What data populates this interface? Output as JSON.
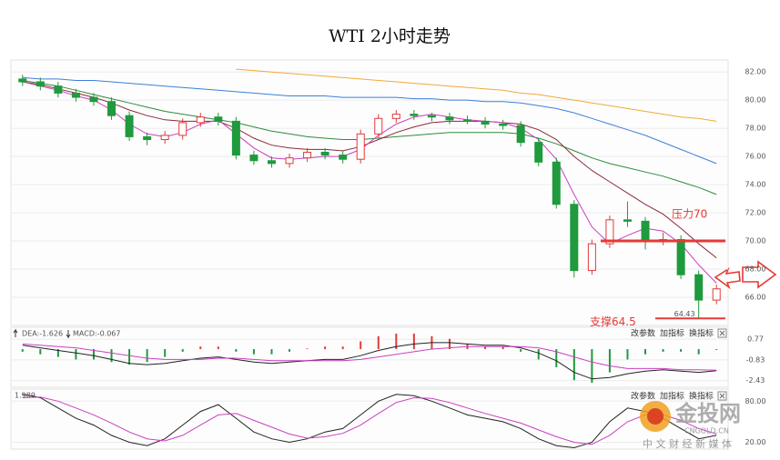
{
  "chart_data": [
    {
      "type": "candlestick",
      "title": "WTI 2小时走势",
      "open": [
        81.5,
        81.3,
        81.0,
        80.5,
        80.2,
        79.9,
        78.9,
        77.4,
        77.2,
        77.5,
        78.4,
        78.8,
        78.5,
        76.1,
        75.7,
        75.5,
        75.9,
        76.3,
        76.1,
        75.8,
        77.6,
        78.7,
        79.0,
        78.9,
        78.8,
        78.6,
        78.5,
        78.3,
        78.2,
        77.0,
        75.6,
        72.6,
        67.9,
        69.8,
        71.5,
        71.4,
        70.0,
        70.1,
        67.6,
        65.8
      ],
      "high": [
        81.8,
        81.6,
        81.3,
        80.8,
        80.5,
        80.2,
        79.2,
        77.7,
        77.8,
        78.7,
        79.1,
        79.1,
        78.8,
        76.4,
        76.0,
        76.2,
        76.6,
        76.6,
        76.4,
        77.9,
        79.0,
        79.3,
        79.3,
        79.1,
        79.1,
        78.9,
        78.8,
        78.6,
        78.5,
        77.3,
        75.9,
        72.9,
        70.1,
        71.8,
        72.8,
        71.7,
        70.6,
        70.4,
        67.9,
        66.9
      ],
      "low": [
        81.0,
        80.7,
        80.2,
        79.9,
        79.6,
        78.6,
        77.1,
        76.8,
        76.9,
        77.2,
        78.1,
        78.2,
        75.8,
        75.4,
        75.2,
        75.2,
        75.6,
        75.8,
        75.5,
        75.5,
        77.3,
        78.4,
        78.6,
        78.5,
        78.3,
        78.3,
        78.0,
        77.9,
        76.7,
        75.3,
        72.3,
        67.4,
        67.6,
        69.5,
        71.0,
        69.4,
        69.7,
        67.3,
        64.43,
        65.5
      ],
      "close": [
        81.3,
        81.0,
        80.5,
        80.2,
        79.9,
        78.9,
        77.4,
        77.2,
        77.5,
        78.4,
        78.8,
        78.5,
        76.1,
        75.7,
        75.5,
        75.9,
        76.3,
        76.1,
        75.8,
        77.6,
        78.7,
        79.0,
        78.9,
        78.8,
        78.6,
        78.5,
        78.3,
        78.2,
        77.0,
        75.6,
        72.6,
        67.9,
        69.8,
        71.5,
        71.4,
        70.0,
        70.1,
        67.6,
        65.8,
        66.6
      ],
      "up_color": "#e23a3a",
      "down_color": "#1f9a3c",
      "series": [
        {
          "color": "#f2a93b",
          "values": [
            null,
            null,
            null,
            null,
            null,
            null,
            null,
            null,
            null,
            null,
            null,
            null,
            82.2,
            82.1,
            82.0,
            81.9,
            81.8,
            81.7,
            81.6,
            81.5,
            81.4,
            81.3,
            81.2,
            81.1,
            81.0,
            80.9,
            80.8,
            80.7,
            80.5,
            80.4,
            80.2,
            80.0,
            79.8,
            79.6,
            79.4,
            79.2,
            79.0,
            78.8,
            78.7,
            78.5
          ]
        },
        {
          "color": "#3d7fd9",
          "values": [
            81.6,
            81.5,
            81.5,
            81.4,
            81.4,
            81.3,
            81.2,
            81.1,
            81.0,
            80.9,
            80.8,
            80.7,
            80.6,
            80.5,
            80.4,
            80.3,
            80.3,
            80.3,
            80.2,
            80.2,
            80.2,
            80.2,
            80.1,
            80.1,
            80.0,
            80.0,
            79.9,
            79.9,
            79.8,
            79.6,
            79.4,
            79.1,
            78.7,
            78.3,
            77.9,
            77.5,
            77.0,
            76.5,
            76.0,
            75.5
          ]
        },
        {
          "color": "#2e8b3a",
          "values": [
            81.4,
            81.2,
            81.0,
            80.7,
            80.4,
            80.1,
            79.8,
            79.5,
            79.2,
            79.0,
            78.8,
            78.6,
            78.4,
            78.1,
            77.8,
            77.6,
            77.4,
            77.3,
            77.2,
            77.2,
            77.3,
            77.4,
            77.5,
            77.6,
            77.7,
            77.7,
            77.7,
            77.7,
            77.6,
            77.3,
            76.9,
            76.4,
            75.9,
            75.5,
            75.2,
            74.9,
            74.6,
            74.2,
            73.8,
            73.3
          ]
        },
        {
          "color": "#8b2a3a",
          "values": [
            81.3,
            81.1,
            80.8,
            80.5,
            80.2,
            79.8,
            79.3,
            78.9,
            78.6,
            78.5,
            78.5,
            78.5,
            78.0,
            77.3,
            76.8,
            76.6,
            76.5,
            76.5,
            76.4,
            76.7,
            77.2,
            77.7,
            78.1,
            78.4,
            78.5,
            78.5,
            78.5,
            78.4,
            78.3,
            77.9,
            77.2,
            76.0,
            75.0,
            74.2,
            73.4,
            72.6,
            71.9,
            70.9,
            69.8,
            68.8
          ]
        },
        {
          "color": "#c940c0",
          "values": [
            81.3,
            81.0,
            80.7,
            80.3,
            80.0,
            79.3,
            78.3,
            77.6,
            77.4,
            77.7,
            78.3,
            78.6,
            77.6,
            76.6,
            75.9,
            75.8,
            75.9,
            76.0,
            76.0,
            76.5,
            77.5,
            78.3,
            78.8,
            79.0,
            78.8,
            78.6,
            78.5,
            78.4,
            78.0,
            77.2,
            75.8,
            73.3,
            71.0,
            69.8,
            70.4,
            70.9,
            70.7,
            69.8,
            68.3,
            67.0
          ]
        }
      ],
      "levels": [
        {
          "label": "压力70",
          "value": 70,
          "color": "#e53935"
        },
        {
          "label": "支撑64.5",
          "value": 64.5,
          "color": "#e53935"
        }
      ],
      "min_label": "64.43",
      "ylim": [
        64,
        82.85
      ],
      "yticks": [
        {
          "value": 66,
          "label": "66.00"
        },
        {
          "value": 68,
          "label": "68.00"
        },
        {
          "value": 70,
          "label": "70.00"
        },
        {
          "value": 72,
          "label": "72.00"
        },
        {
          "value": 74,
          "label": "74.00"
        },
        {
          "value": 76,
          "label": "76.00"
        },
        {
          "value": 78,
          "label": "78.00"
        },
        {
          "value": 80,
          "label": "80.00"
        },
        {
          "value": 82,
          "label": "82.00"
        }
      ],
      "grid": true
    },
    {
      "type": "macd",
      "dea_label": "DEA:-1.626",
      "macd_label": "MACD:-0.067",
      "buttons": [
        "改参数",
        "加指标",
        "换指标"
      ],
      "ylim": [
        -2.95,
        1.55
      ],
      "yticks": [
        0.77,
        -0.83,
        -2.43
      ],
      "series": [
        {
          "color": "#222222",
          "values": [
            0.3,
            0.1,
            -0.1,
            -0.3,
            -0.5,
            -0.8,
            -1.1,
            -1.2,
            -1.1,
            -0.9,
            -0.7,
            -0.6,
            -0.8,
            -1.0,
            -1.1,
            -1.0,
            -0.9,
            -0.8,
            -0.8,
            -0.5,
            -0.1,
            0.2,
            0.4,
            0.5,
            0.5,
            0.4,
            0.3,
            0.3,
            0.1,
            -0.3,
            -0.9,
            -1.8,
            -2.3,
            -2.2,
            -1.9,
            -1.7,
            -1.6,
            -1.7,
            -1.8,
            -1.66
          ]
        },
        {
          "color": "#c940c0",
          "values": [
            0.4,
            0.3,
            0.2,
            0.1,
            -0.1,
            -0.3,
            -0.5,
            -0.7,
            -0.8,
            -0.8,
            -0.8,
            -0.7,
            -0.7,
            -0.8,
            -0.9,
            -0.9,
            -0.9,
            -0.9,
            -0.9,
            -0.8,
            -0.6,
            -0.4,
            -0.2,
            0.0,
            0.1,
            0.2,
            0.2,
            0.2,
            0.2,
            0.1,
            -0.2,
            -0.6,
            -1.0,
            -1.3,
            -1.5,
            -1.5,
            -1.5,
            -1.6,
            -1.6,
            -1.626
          ]
        }
      ],
      "histogram": {
        "up_color": "#e23a3a",
        "down_color": "#1f9a3c",
        "values": [
          -0.2,
          -0.4,
          -0.6,
          -0.8,
          -0.8,
          -1.0,
          -1.2,
          -1.0,
          -0.6,
          -0.2,
          0.2,
          0.2,
          -0.2,
          -0.4,
          -0.4,
          -0.2,
          0.05,
          0.2,
          0.2,
          0.6,
          1.0,
          1.2,
          1.2,
          1.0,
          0.8,
          0.4,
          0.2,
          0.2,
          -0.2,
          -0.8,
          -1.4,
          -2.4,
          -2.6,
          -1.8,
          -0.8,
          -0.4,
          -0.2,
          -0.2,
          -0.4,
          -0.067
        ]
      }
    },
    {
      "type": "kd",
      "header_label": "1.989",
      "buttons": [
        "改参数",
        "加指标",
        "换指标"
      ],
      "ylim": [
        10,
        95
      ],
      "yticks": [
        {
          "value": 80,
          "label": "80.00"
        },
        {
          "value": 20,
          "label": "20.00"
        }
      ],
      "series": [
        {
          "color": "#222222",
          "values": [
            90,
            85,
            70,
            55,
            45,
            30,
            20,
            15,
            25,
            45,
            65,
            75,
            55,
            35,
            25,
            20,
            25,
            35,
            40,
            60,
            80,
            90,
            88,
            80,
            70,
            60,
            55,
            50,
            40,
            25,
            15,
            12,
            20,
            50,
            70,
            65,
            55,
            40,
            25,
            30
          ]
        },
        {
          "color": "#c940c0",
          "values": [
            85,
            86,
            80,
            70,
            60,
            48,
            35,
            25,
            22,
            30,
            45,
            60,
            62,
            52,
            42,
            32,
            26,
            28,
            33,
            45,
            62,
            78,
            85,
            84,
            78,
            70,
            62,
            55,
            48,
            38,
            28,
            20,
            17,
            30,
            50,
            60,
            60,
            52,
            40,
            32
          ]
        }
      ]
    }
  ],
  "watermark": {
    "brand": "金投网",
    "domain": "CNGOLD.CN",
    "slogan": "中 文 财 经 新 媒 体"
  }
}
